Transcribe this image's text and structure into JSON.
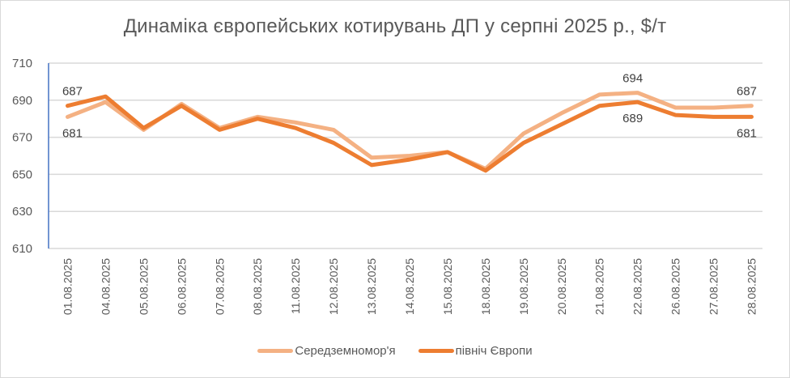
{
  "chart_data": {
    "type": "line",
    "title": "Динаміка європейських котирувань ДП у серпні 2025 р., $/т",
    "xlabel": "",
    "ylabel": "",
    "ylim": [
      610,
      710
    ],
    "yticks": [
      610,
      630,
      650,
      670,
      690,
      710
    ],
    "grid": true,
    "legend_position": "bottom",
    "categories": [
      "01.08.2025",
      "04.08.2025",
      "05.08.2025",
      "06.08.2025",
      "07.08.2025",
      "08.08.2025",
      "11.08.2025",
      "12.08.2025",
      "13.08.2025",
      "14.08.2025",
      "15.08.2025",
      "18.08.2025",
      "19.08.2025",
      "20.08.2025",
      "21.08.2025",
      "22.08.2025",
      "26.08.2025",
      "27.08.2025",
      "28.08.2025"
    ],
    "series": [
      {
        "name": "Середземномор'я",
        "color": "#F4B183",
        "values": [
          681,
          689,
          674,
          688,
          675,
          681,
          678,
          674,
          659,
          660,
          662,
          653,
          672,
          683,
          693,
          694,
          686,
          686,
          687
        ]
      },
      {
        "name": "північ Європи",
        "color": "#ED7D31",
        "values": [
          687,
          692,
          675,
          687,
          674,
          680,
          675,
          667,
          655,
          658,
          662,
          652,
          667,
          677,
          687,
          689,
          682,
          681,
          681
        ]
      }
    ],
    "annotations": [
      {
        "series": "північ Європи",
        "category": "01.08.2025",
        "text": "687",
        "position": "above"
      },
      {
        "series": "Середземномор'я",
        "category": "01.08.2025",
        "text": "681",
        "position": "below"
      },
      {
        "series": "Середземномор'я",
        "category": "22.08.2025",
        "text": "694",
        "position": "above"
      },
      {
        "series": "північ Європи",
        "category": "22.08.2025",
        "text": "689",
        "position": "below"
      },
      {
        "series": "Середземномор'я",
        "category": "28.08.2025",
        "text": "687",
        "position": "above"
      },
      {
        "series": "північ Європи",
        "category": "28.08.2025",
        "text": "681",
        "position": "below"
      }
    ]
  },
  "legend": {
    "items": [
      {
        "label": "Середземномор'я",
        "color": "#F4B183"
      },
      {
        "label": "північ Європи",
        "color": "#ED7D31"
      }
    ]
  },
  "colors": {
    "axis": "#4472C4",
    "grid": "#d9d9d9",
    "text": "#595959"
  }
}
